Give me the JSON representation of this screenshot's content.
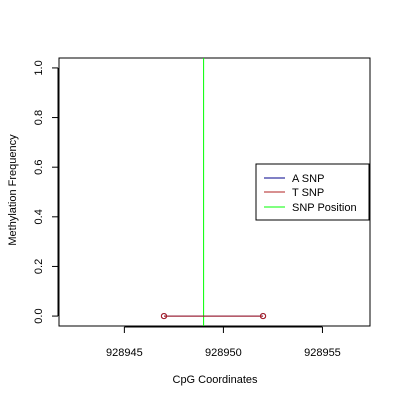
{
  "chart_data": {
    "type": "line",
    "title": "",
    "xlabel": "CpG Coordinates",
    "ylabel": "Methylation Frequency",
    "xlim": [
      928941.7,
      928957.4
    ],
    "ylim": [
      -0.04,
      1.04
    ],
    "x_ticks": [
      928945,
      928950,
      928955
    ],
    "y_ticks": [
      0.0,
      0.2,
      0.4,
      0.6,
      0.8,
      1.0
    ],
    "x_tick_labels": [
      "928945",
      "928950",
      "928955"
    ],
    "y_tick_labels": [
      "0.0",
      "0.2",
      "0.4",
      "0.6",
      "0.8",
      "1.0"
    ],
    "grid": false,
    "legend_position": "right",
    "series": [
      {
        "name": "A SNP",
        "color": "#00008b",
        "x": [
          928947,
          928952
        ],
        "values": [
          0.0,
          0.0
        ]
      },
      {
        "name": "T SNP",
        "color": "#b22222",
        "x": [
          928947,
          928952
        ],
        "values": [
          0.0,
          0.0
        ]
      }
    ],
    "snp_position": {
      "name": "SNP Position",
      "color": "#00ff00",
      "x": 928949
    }
  }
}
